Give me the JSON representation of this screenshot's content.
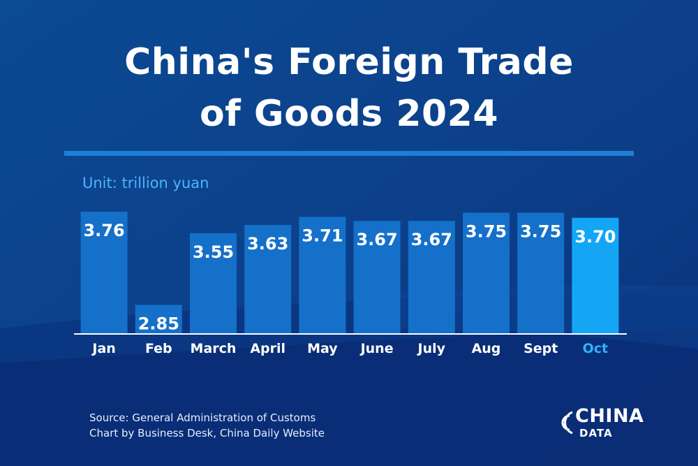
{
  "header": {
    "title_line1": "China's Foreign Trade",
    "title_line2": "of Goods 2024"
  },
  "unit_label": "Unit: trillion yuan",
  "footer": {
    "source": "Source: General Administration of Customs",
    "credit": "Chart by Business Desk, China Daily Website"
  },
  "logo": {
    "main": "CHINA",
    "sub": "DATA"
  },
  "colors": {
    "bar": "#1570c9",
    "bar_highlight": "#14a6f5",
    "highlight_label": "#2ab4ff",
    "accent_rule": "#1e7fd6"
  },
  "chart_data": {
    "type": "bar",
    "categories": [
      "Jan",
      "Feb",
      "March",
      "April",
      "May",
      "June",
      "July",
      "Aug",
      "Sept",
      "Oct"
    ],
    "values": [
      3.76,
      2.85,
      3.55,
      3.63,
      3.71,
      3.67,
      3.67,
      3.75,
      3.75,
      3.7
    ],
    "data_labels": [
      "3.76",
      "2.85",
      "3.55",
      "3.63",
      "3.71",
      "3.67",
      "3.67",
      "3.75",
      "3.75",
      "3.70"
    ],
    "highlight_index": 9,
    "ylim": [
      0,
      3.76
    ],
    "grid": false
  }
}
